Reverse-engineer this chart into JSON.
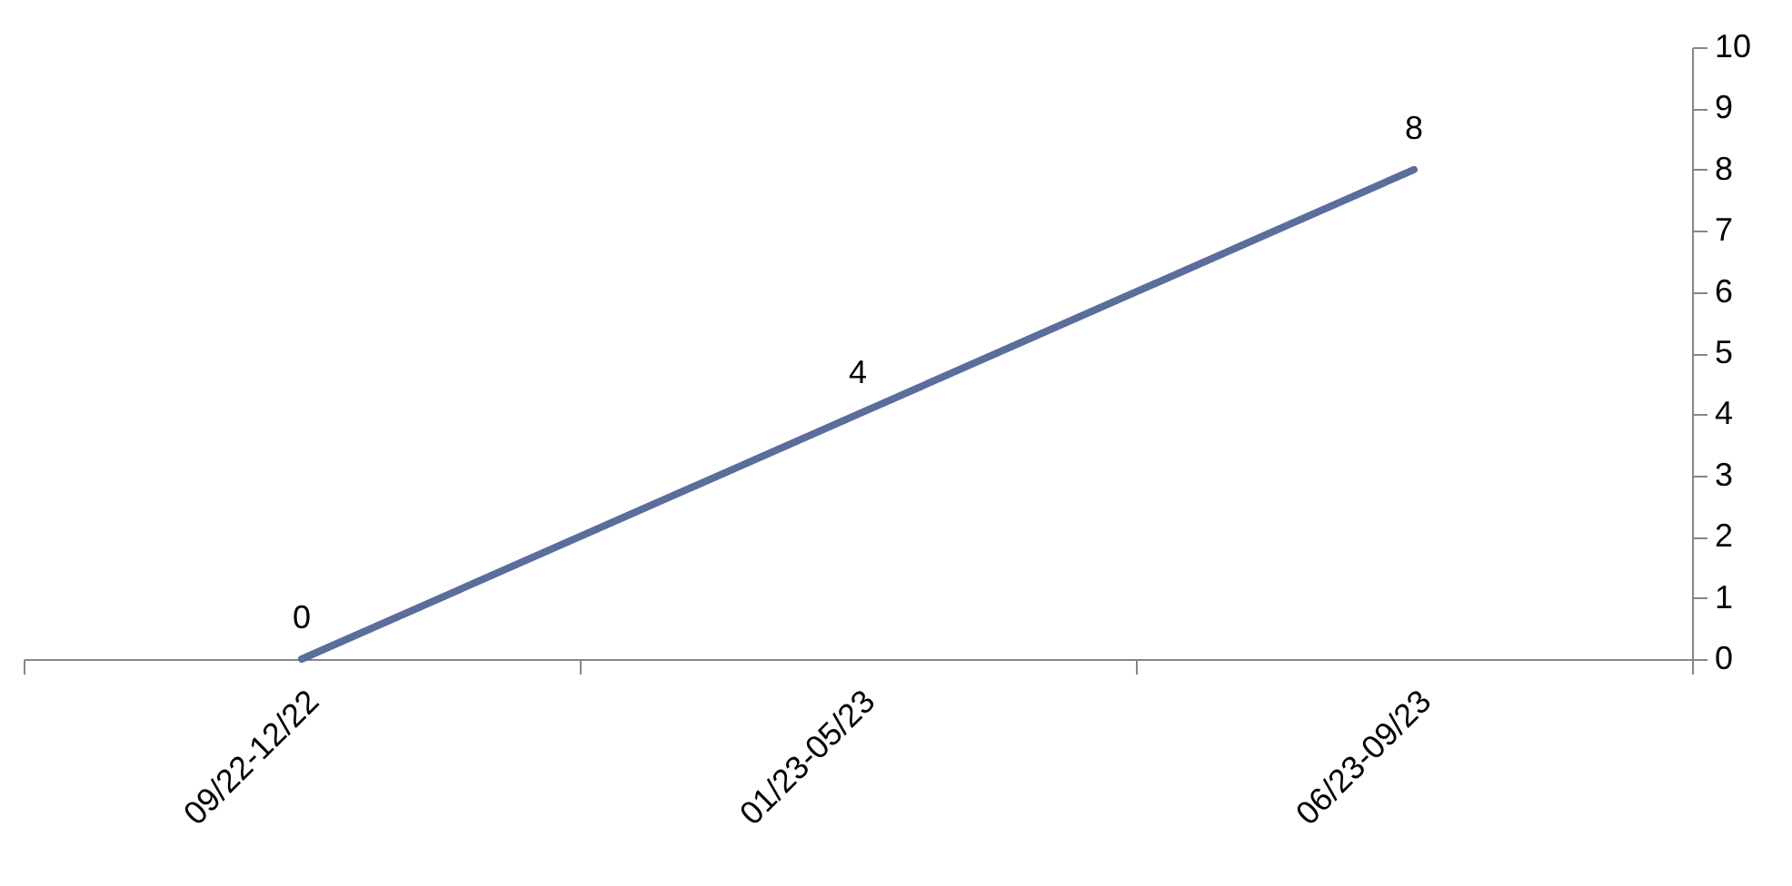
{
  "chart_data": {
    "type": "line",
    "categories": [
      "09/22-12/22",
      "01/23-05/23",
      "06/23-09/23"
    ],
    "series": [
      {
        "color": "#5a6d9c",
        "values": [
          0,
          4,
          8
        ]
      }
    ],
    "ylim": [
      0,
      10
    ],
    "yticks": [
      0,
      1,
      2,
      3,
      4,
      5,
      6,
      7,
      8,
      9,
      10
    ],
    "data_labels": true,
    "grid": false,
    "marker": "none"
  }
}
